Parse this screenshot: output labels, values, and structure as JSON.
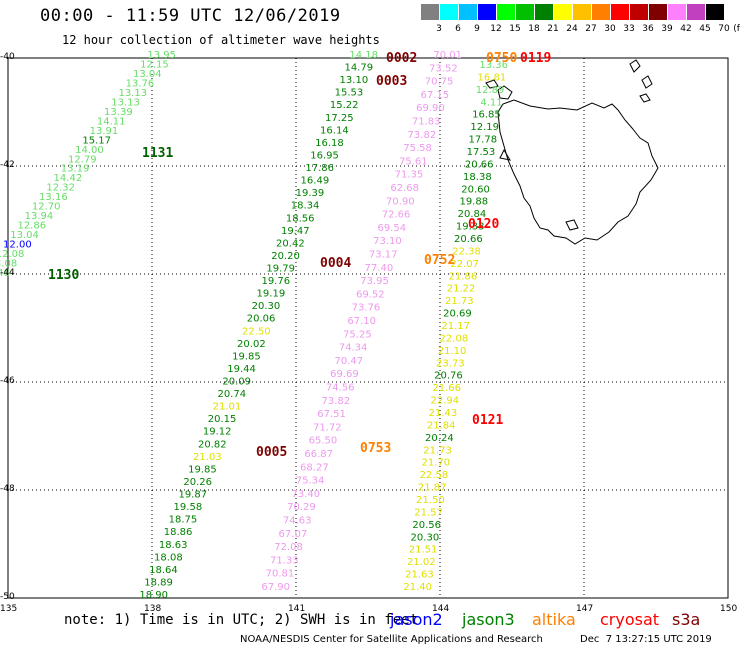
{
  "header": {
    "title": "00:00 - 11:59 UTC 12/06/2019",
    "subtitle": "12 hour collection of altimeter wave heights"
  },
  "color_scale": {
    "unit": "(ft)",
    "bins": [
      {
        "label": "3",
        "color": "#808080"
      },
      {
        "label": "6",
        "color": "#00ffff"
      },
      {
        "label": "9",
        "color": "#00c0ff"
      },
      {
        "label": "12",
        "color": "#0000ff"
      },
      {
        "label": "15",
        "color": "#00ff00"
      },
      {
        "label": "18",
        "color": "#00c000"
      },
      {
        "label": "21",
        "color": "#008000"
      },
      {
        "label": "24",
        "color": "#ffff00"
      },
      {
        "label": "27",
        "color": "#ffc000"
      },
      {
        "label": "30",
        "color": "#ff8000"
      },
      {
        "label": "33",
        "color": "#ff0000"
      },
      {
        "label": "36",
        "color": "#c00000"
      },
      {
        "label": "39",
        "color": "#800000"
      },
      {
        "label": "42",
        "color": "#ff80ff"
      },
      {
        "label": "45",
        "color": "#c040c0"
      },
      {
        "label": "70",
        "color": "#000000"
      }
    ]
  },
  "axes": {
    "lat_labels": [
      "-40",
      "-42",
      "-44",
      "-46",
      "-48",
      "-50"
    ],
    "lon_labels": [
      "135",
      "138",
      "141",
      "144",
      "147",
      "150"
    ]
  },
  "tracks": [
    {
      "name": "1131",
      "color": "#008000",
      "label_color": "#006000",
      "values": [
        {
          "v": "13.95",
          "c": "#66dd66"
        },
        {
          "v": "12.15",
          "c": "#66dd66"
        },
        {
          "v": "13.04",
          "c": "#66dd66"
        },
        {
          "v": "13.76",
          "c": "#66dd66"
        },
        {
          "v": "13.13",
          "c": "#66dd66"
        },
        {
          "v": "13.13",
          "c": "#66dd66"
        },
        {
          "v": "13.39",
          "c": "#66dd66"
        },
        {
          "v": "14.11",
          "c": "#66dd66"
        },
        {
          "v": "13.91",
          "c": "#66dd66"
        },
        {
          "v": "15.17",
          "c": "#008000"
        },
        {
          "v": "14.00",
          "c": "#66dd66"
        },
        {
          "v": "12.79",
          "c": "#66dd66"
        },
        {
          "v": "13.19",
          "c": "#66dd66"
        },
        {
          "v": "14.42",
          "c": "#66dd66"
        },
        {
          "v": "12.32",
          "c": "#66dd66"
        },
        {
          "v": "13.16",
          "c": "#66dd66"
        },
        {
          "v": "12.70",
          "c": "#66dd66"
        },
        {
          "v": "13.94",
          "c": "#66dd66"
        },
        {
          "v": "12.86",
          "c": "#66dd66"
        },
        {
          "v": "13.04",
          "c": "#66dd66"
        },
        {
          "v": "12.00",
          "c": "#0000ff"
        },
        {
          "v": "12.08",
          "c": "#66dd66"
        },
        {
          "v": "13.08",
          "c": "#66dd66"
        },
        {
          "v": "13.48",
          "c": "#66dd66"
        }
      ]
    },
    {
      "name": "0002",
      "color": "#800000",
      "values": [
        {
          "v": "14.18",
          "c": "#66dd66"
        },
        {
          "v": "14.79",
          "c": "#008000"
        },
        {
          "v": "13.10",
          "c": "#008000"
        },
        {
          "v": "15.53",
          "c": "#008000"
        },
        {
          "v": "15.22",
          "c": "#008000"
        },
        {
          "v": "17.25",
          "c": "#008000"
        },
        {
          "v": "16.14",
          "c": "#008000"
        },
        {
          "v": "16.18",
          "c": "#008000"
        },
        {
          "v": "16.95",
          "c": "#008000"
        },
        {
          "v": "17.86",
          "c": "#008000"
        },
        {
          "v": "16.49",
          "c": "#008000"
        },
        {
          "v": "19.39",
          "c": "#008000"
        },
        {
          "v": "18.34",
          "c": "#008000"
        },
        {
          "v": "18.56",
          "c": "#008000"
        },
        {
          "v": "19.47",
          "c": "#008000"
        },
        {
          "v": "20.42",
          "c": "#008000"
        },
        {
          "v": "20.20",
          "c": "#008000"
        },
        {
          "v": "19.79",
          "c": "#008000"
        },
        {
          "v": "19.76",
          "c": "#008000"
        },
        {
          "v": "19.19",
          "c": "#008000"
        },
        {
          "v": "20.30",
          "c": "#008000"
        },
        {
          "v": "20.06",
          "c": "#008000"
        },
        {
          "v": "22.50",
          "c": "#e0e000"
        },
        {
          "v": "20.02",
          "c": "#008000"
        },
        {
          "v": "19.85",
          "c": "#008000"
        },
        {
          "v": "19.44",
          "c": "#008000"
        },
        {
          "v": "20.09",
          "c": "#008000"
        },
        {
          "v": "20.74",
          "c": "#008000"
        },
        {
          "v": "21.01",
          "c": "#e0e000"
        },
        {
          "v": "20.15",
          "c": "#008000"
        },
        {
          "v": "19.12",
          "c": "#008000"
        },
        {
          "v": "20.82",
          "c": "#008000"
        },
        {
          "v": "21.03",
          "c": "#e0e000"
        },
        {
          "v": "19.85",
          "c": "#008000"
        },
        {
          "v": "20.26",
          "c": "#008000"
        },
        {
          "v": "19.87",
          "c": "#008000"
        },
        {
          "v": "19.58",
          "c": "#008000"
        },
        {
          "v": "18.75",
          "c": "#008000"
        },
        {
          "v": "18.86",
          "c": "#008000"
        },
        {
          "v": "18.63",
          "c": "#008000"
        },
        {
          "v": "18.08",
          "c": "#008000"
        },
        {
          "v": "18.64",
          "c": "#008000"
        },
        {
          "v": "18.89",
          "c": "#008000"
        },
        {
          "v": "18.90",
          "c": "#008000"
        }
      ]
    },
    {
      "name": "0752",
      "color": "#ee82ee",
      "values": [
        {
          "v": "70.01",
          "c": "#ee99ee"
        },
        {
          "v": "73.52",
          "c": "#ee99ee"
        },
        {
          "v": "70.75",
          "c": "#ee99ee"
        },
        {
          "v": "67.15",
          "c": "#ee99ee"
        },
        {
          "v": "69.90",
          "c": "#ee99ee"
        },
        {
          "v": "71.83",
          "c": "#ee99ee"
        },
        {
          "v": "73.82",
          "c": "#ee99ee"
        },
        {
          "v": "75.58",
          "c": "#ee99ee"
        },
        {
          "v": "75.61",
          "c": "#ee99ee"
        },
        {
          "v": "71.35",
          "c": "#ee99ee"
        },
        {
          "v": "62.68",
          "c": "#ee99ee"
        },
        {
          "v": "70.90",
          "c": "#ee99ee"
        },
        {
          "v": "72.66",
          "c": "#ee99ee"
        },
        {
          "v": "69.54",
          "c": "#ee99ee"
        },
        {
          "v": "73.10",
          "c": "#ee99ee"
        },
        {
          "v": "73.17",
          "c": "#ee99ee"
        },
        {
          "v": "77.40",
          "c": "#ee99ee"
        },
        {
          "v": "73.95",
          "c": "#ee99ee"
        },
        {
          "v": "69.52",
          "c": "#ee99ee"
        },
        {
          "v": "73.76",
          "c": "#ee99ee"
        },
        {
          "v": "67.10",
          "c": "#ee99ee"
        },
        {
          "v": "75.25",
          "c": "#ee99ee"
        },
        {
          "v": "74.34",
          "c": "#ee99ee"
        },
        {
          "v": "70.47",
          "c": "#ee99ee"
        },
        {
          "v": "69.69",
          "c": "#ee99ee"
        },
        {
          "v": "74.56",
          "c": "#ee99ee"
        },
        {
          "v": "73.82",
          "c": "#ee99ee"
        },
        {
          "v": "67.51",
          "c": "#ee99ee"
        },
        {
          "v": "71.72",
          "c": "#ee99ee"
        },
        {
          "v": "65.50",
          "c": "#ee99ee"
        },
        {
          "v": "66.87",
          "c": "#ee99ee"
        },
        {
          "v": "68.27",
          "c": "#ee99ee"
        },
        {
          "v": "75.34",
          "c": "#ee99ee"
        },
        {
          "v": "73.40",
          "c": "#ee99ee"
        },
        {
          "v": "70.29",
          "c": "#ee99ee"
        },
        {
          "v": "74.63",
          "c": "#ee99ee"
        },
        {
          "v": "67.07",
          "c": "#ee99ee"
        },
        {
          "v": "72.08",
          "c": "#ee99ee"
        },
        {
          "v": "71.33",
          "c": "#ee99ee"
        },
        {
          "v": "70.81",
          "c": "#ee99ee"
        },
        {
          "v": "67.90",
          "c": "#ee99ee"
        }
      ]
    },
    {
      "name": "0120",
      "color": "#008000",
      "values": [
        {
          "v": "13.36",
          "c": "#66dd66"
        },
        {
          "v": "16.81",
          "c": "#e0e000"
        },
        {
          "v": "12.89",
          "c": "#66dd66"
        },
        {
          "v": "4.11",
          "c": "#66dd66"
        },
        {
          "v": "16.85",
          "c": "#008000"
        },
        {
          "v": "12.19",
          "c": "#008000"
        },
        {
          "v": "17.78",
          "c": "#008000"
        },
        {
          "v": "17.53",
          "c": "#008000"
        },
        {
          "v": "20.66",
          "c": "#008000"
        },
        {
          "v": "18.38",
          "c": "#008000"
        },
        {
          "v": "20.60",
          "c": "#008000"
        },
        {
          "v": "19.88",
          "c": "#008000"
        },
        {
          "v": "20.84",
          "c": "#008000"
        },
        {
          "v": "19.33",
          "c": "#008000"
        },
        {
          "v": "20.66",
          "c": "#008000"
        },
        {
          "v": "22.38",
          "c": "#e0e000"
        },
        {
          "v": "22.07",
          "c": "#e0e000"
        },
        {
          "v": "21.86",
          "c": "#e0e000"
        },
        {
          "v": "21.22",
          "c": "#e0e000"
        },
        {
          "v": "21.73",
          "c": "#e0e000"
        },
        {
          "v": "20.69",
          "c": "#008000"
        },
        {
          "v": "21.17",
          "c": "#e0e000"
        },
        {
          "v": "22.08",
          "c": "#e0e000"
        },
        {
          "v": "21.10",
          "c": "#e0e000"
        },
        {
          "v": "23.73",
          "c": "#e0e000"
        },
        {
          "v": "20.76",
          "c": "#008000"
        },
        {
          "v": "21.66",
          "c": "#e0e000"
        },
        {
          "v": "22.94",
          "c": "#e0e000"
        },
        {
          "v": "21.43",
          "c": "#e0e000"
        },
        {
          "v": "21.84",
          "c": "#e0e000"
        },
        {
          "v": "20.24",
          "c": "#008000"
        },
        {
          "v": "21.73",
          "c": "#e0e000"
        },
        {
          "v": "21.70",
          "c": "#e0e000"
        },
        {
          "v": "22.58",
          "c": "#e0e000"
        },
        {
          "v": "21.87",
          "c": "#e0e000"
        },
        {
          "v": "21.50",
          "c": "#e0e000"
        },
        {
          "v": "21.57",
          "c": "#e0e000"
        },
        {
          "v": "20.56",
          "c": "#008000"
        },
        {
          "v": "20.30",
          "c": "#008000"
        },
        {
          "v": "21.51",
          "c": "#e0e000"
        },
        {
          "v": "21.02",
          "c": "#e0e000"
        },
        {
          "v": "21.63",
          "c": "#e0e000"
        },
        {
          "v": "21.40",
          "c": "#e0e000"
        }
      ]
    }
  ],
  "time_labels": [
    {
      "text": "1131",
      "color": "#006000"
    },
    {
      "text": "1130",
      "color": "#006000"
    },
    {
      "text": "0002",
      "color": "#800000"
    },
    {
      "text": "0003",
      "color": "#800000"
    },
    {
      "text": "0004",
      "color": "#800000"
    },
    {
      "text": "0005",
      "color": "#800000"
    },
    {
      "text": "0750",
      "color": "#ff8000"
    },
    {
      "text": "0119",
      "color": "#ff0000"
    },
    {
      "text": "0752",
      "color": "#ff8000"
    },
    {
      "text": "0753",
      "color": "#ff8000"
    },
    {
      "text": "0120",
      "color": "#ff0000"
    },
    {
      "text": "0121",
      "color": "#ff0000"
    }
  ],
  "footer": {
    "note": "note: 1) Time is in UTC; 2) SWH is in feet",
    "satellites": [
      {
        "name": "jason2",
        "color": "#0000ff"
      },
      {
        "name": "jason3",
        "color": "#008000"
      },
      {
        "name": "altika",
        "color": "#ff8000"
      },
      {
        "name": "cryosat",
        "color": "#ff0000"
      },
      {
        "name": "s3a",
        "color": "#800000"
      }
    ],
    "credit": "NOAA/NESDIS Center for Satellite Applications and Research",
    "stamp": "Dec  7 13:27:15 UTC 2019"
  }
}
